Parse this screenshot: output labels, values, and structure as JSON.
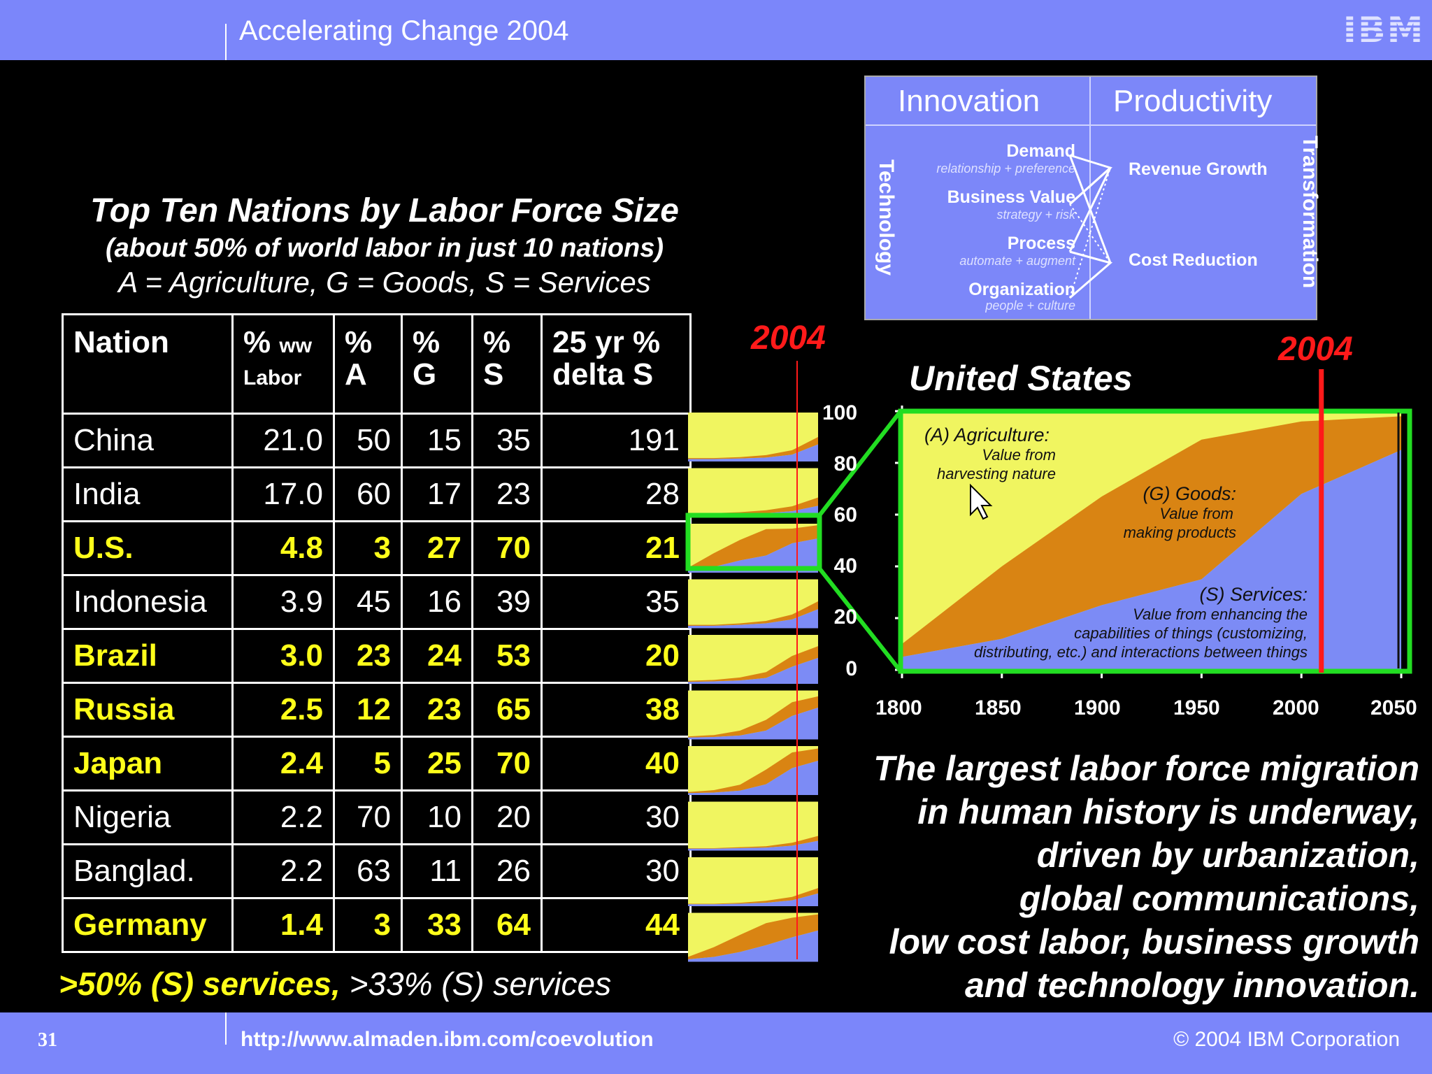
{
  "header": {
    "title": "Accelerating Change 2004",
    "logo_text": "IBM"
  },
  "footer": {
    "page_number": "31",
    "url": "http://www.almaden.ibm.com/coevolution",
    "copyright": "© 2004 IBM Corporation"
  },
  "table_heading": {
    "title": "Top Ten Nations by Labor Force Size",
    "subtitle": "(about 50% of world labor in just 10 nations)",
    "legend": "A = Agriculture, G = Goods, S = Services"
  },
  "table": {
    "headers": {
      "nation": "Nation",
      "ww_labor_pct": "%",
      "ww_labor_small": "ww",
      "ww_labor_word": "Labor",
      "a_pct": "%",
      "a_letter": "A",
      "g_pct": "%",
      "g_letter": "G",
      "s_pct": "%",
      "s_letter": "S",
      "delta_line1": "25 yr %",
      "delta_line2": "delta S"
    },
    "rows": [
      {
        "nation": "China",
        "ww": "21.0",
        "a": "50",
        "g": "15",
        "s": "35",
        "delta": "191",
        "highlight": false
      },
      {
        "nation": "India",
        "ww": "17.0",
        "a": "60",
        "g": "17",
        "s": "23",
        "delta": "28",
        "highlight": false
      },
      {
        "nation": "U.S.",
        "ww": "4.8",
        "a": "3",
        "g": "27",
        "s": "70",
        "delta": "21",
        "highlight": true
      },
      {
        "nation": "Indonesia",
        "ww": "3.9",
        "a": "45",
        "g": "16",
        "s": "39",
        "delta": "35",
        "highlight": false
      },
      {
        "nation": "Brazil",
        "ww": "3.0",
        "a": "23",
        "g": "24",
        "s": "53",
        "delta": "20",
        "highlight": true
      },
      {
        "nation": "Russia",
        "ww": "2.5",
        "a": "12",
        "g": "23",
        "s": "65",
        "delta": "38",
        "highlight": true
      },
      {
        "nation": "Japan",
        "ww": "2.4",
        "a": "5",
        "g": "25",
        "s": "70",
        "delta": "40",
        "highlight": true
      },
      {
        "nation": "Nigeria",
        "ww": "2.2",
        "a": "70",
        "g": "10",
        "s": "20",
        "delta": "30",
        "highlight": false
      },
      {
        "nation": "Banglad.",
        "ww": "2.2",
        "a": "63",
        "g": "11",
        "s": "26",
        "delta": "30",
        "highlight": false
      },
      {
        "nation": "Germany",
        "ww": "1.4",
        "a": "3",
        "g": "33",
        "s": "64",
        "delta": "44",
        "highlight": true
      }
    ]
  },
  "table_footnote": {
    "bold_part": ">50% (S) services,",
    "plain_part": ">33% (S) services"
  },
  "innovation_box": {
    "left_header": "Innovation",
    "right_header": "Productivity",
    "left_vertical": "Technology",
    "right_vertical": "Transformation",
    "items": [
      {
        "title": "Demand",
        "sub": "relationship + preference"
      },
      {
        "title": "Business Value",
        "sub": "strategy + risk"
      },
      {
        "title": "Process",
        "sub": "automate + augment"
      },
      {
        "title": "Organization",
        "sub": "people + culture"
      }
    ],
    "outcomes": [
      "Revenue Growth",
      "Cost Reduction"
    ]
  },
  "year_marker": "2004",
  "colors": {
    "agriculture": "#F0F560",
    "goods": "#D98413",
    "services": "#7C8BF5",
    "zoom_frame": "#22DD22",
    "marker": "#FF1A1A",
    "highlight_text": "#FFFF1A"
  },
  "us_chart": {
    "title": "United States",
    "y_ticks": [
      "100",
      "80",
      "60",
      "40",
      "20",
      "0"
    ],
    "x_ticks": [
      "1800",
      "1850",
      "1900",
      "1950",
      "2000",
      "2050"
    ],
    "annotations": {
      "agriculture_title": "(A) Agriculture:",
      "agriculture_desc1": "Value from",
      "agriculture_desc2": "harvesting nature",
      "goods_title": "(G) Goods:",
      "goods_desc1": "Value from",
      "goods_desc2": "making products",
      "services_title": "(S) Services:",
      "services_desc1": "Value from enhancing the",
      "services_desc2": "capabilities of things (customizing,",
      "services_desc3": "distributing, etc.) and interactions between things"
    }
  },
  "chart_data": {
    "type": "area",
    "stacked": true,
    "x": [
      1800,
      1850,
      1900,
      1950,
      2000,
      2050
    ],
    "series": [
      {
        "name": "(S) Services",
        "values": [
          5,
          12,
          25,
          35,
          68,
          85
        ]
      },
      {
        "name": "(G) Goods",
        "values": [
          5,
          28,
          42,
          54,
          28,
          13
        ]
      },
      {
        "name": "(A) Agriculture",
        "values": [
          90,
          60,
          33,
          11,
          4,
          2
        ]
      }
    ],
    "ylim": [
      0,
      100
    ],
    "xlim": [
      1800,
      2050
    ],
    "marker_x": 2010
  },
  "mini_charts": [
    {
      "nation": "China",
      "s": [
        5,
        5,
        6,
        8,
        14,
        35
      ],
      "g": [
        2,
        2,
        3,
        5,
        9,
        15
      ]
    },
    {
      "nation": "India",
      "s": [
        5,
        5,
        6,
        8,
        12,
        23
      ],
      "g": [
        2,
        3,
        4,
        6,
        10,
        17
      ]
    },
    {
      "nation": "U.S.",
      "s": [
        5,
        12,
        25,
        35,
        60,
        70
      ],
      "g": [
        5,
        28,
        42,
        54,
        30,
        27
      ]
    },
    {
      "nation": "Indonesia",
      "s": [
        5,
        5,
        7,
        10,
        18,
        39
      ],
      "g": [
        2,
        2,
        3,
        5,
        10,
        16
      ]
    },
    {
      "nation": "Brazil",
      "s": [
        4,
        5,
        7,
        12,
        35,
        53
      ],
      "g": [
        2,
        3,
        6,
        12,
        22,
        24
      ]
    },
    {
      "nation": "Russia",
      "s": [
        4,
        5,
        8,
        18,
        48,
        65
      ],
      "g": [
        2,
        4,
        10,
        22,
        28,
        23
      ]
    },
    {
      "nation": "Japan",
      "s": [
        4,
        5,
        9,
        22,
        55,
        70
      ],
      "g": [
        2,
        5,
        12,
        30,
        32,
        25
      ]
    },
    {
      "nation": "Nigeria",
      "s": [
        4,
        4,
        5,
        6,
        10,
        20
      ],
      "g": [
        1,
        1,
        2,
        3,
        6,
        10
      ]
    },
    {
      "nation": "Banglad.",
      "s": [
        4,
        4,
        5,
        7,
        12,
        26
      ],
      "g": [
        1,
        1,
        2,
        4,
        7,
        11
      ]
    },
    {
      "nation": "Germany",
      "s": [
        5,
        10,
        20,
        34,
        50,
        64
      ],
      "g": [
        5,
        20,
        35,
        45,
        40,
        33
      ]
    }
  ],
  "claim": {
    "line1": "The largest labor force migration",
    "line2": "in human history is underway,",
    "line3": "driven by urbanization,",
    "line4": "global communications,",
    "line5": "low cost labor, business growth",
    "line6": "and technology innovation."
  }
}
